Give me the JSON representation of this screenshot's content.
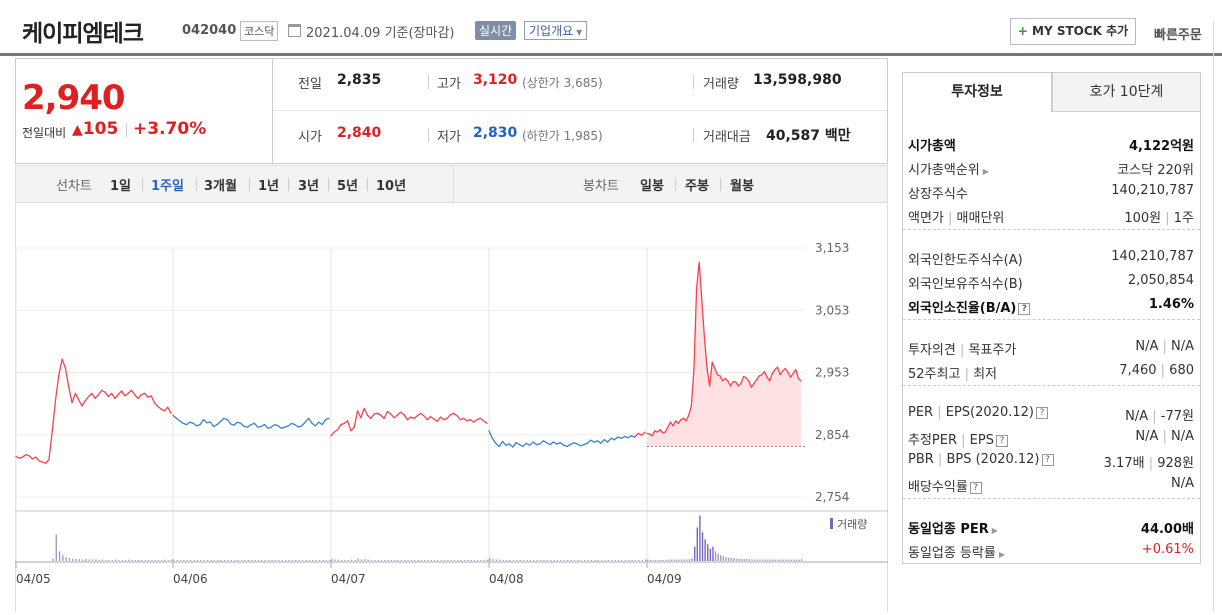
{
  "header": {
    "name": "케이피엠테크",
    "code": "042040",
    "market": "코스닥",
    "date_text": "2021.04.09 기준(장마감)",
    "realtime_label": "실시간",
    "overview_label": "기업개요",
    "mystock_label": "MY STOCK 추가",
    "quick_order_label": "빠른주문"
  },
  "price": {
    "current": "2,940",
    "change_label": "전일대비",
    "change_amount": "105",
    "change_percent": "+3.70%"
  },
  "stats": {
    "prev_label": "전일",
    "prev_value": "2,835",
    "high_label": "고가",
    "high_value": "3,120",
    "upper_limit": "(상한가 3,685)",
    "volume_label": "거래량",
    "volume_value": "13,598,980",
    "open_label": "시가",
    "open_value": "2,840",
    "low_label": "저가",
    "low_value": "2,830",
    "lower_limit": "(하한가 1,985)",
    "amount_label": "거래대금",
    "amount_value": "40,587",
    "amount_unit": "백만"
  },
  "chart_tabs": {
    "line_label": "선차트",
    "periods": [
      "1일",
      "1주일",
      "3개월",
      "1년",
      "3년",
      "5년",
      "10년"
    ],
    "selected": "1주일",
    "candle_label": "봉차트",
    "candles": [
      "일봉",
      "주봉",
      "월봉"
    ]
  },
  "chart_data": {
    "type": "line",
    "y_ticks": [
      "3,153",
      "3,053",
      "2,953",
      "2,854",
      "2,754"
    ],
    "ylim": [
      2754,
      3153
    ],
    "x_labels": [
      "04/05",
      "04/06",
      "04/07",
      "04/08",
      "04/09"
    ],
    "prev_close": 2835,
    "volume_legend": "거래량",
    "series": [
      {
        "days": [
          [
            2819,
            2816,
            2818,
            2822,
            2820,
            2815,
            2818,
            2812,
            2810,
            2808,
            2814,
            2860,
            2910,
            2950,
            2975,
            2960,
            2930,
            2905,
            2920,
            2910,
            2900,
            2908,
            2915,
            2920,
            2912,
            2918,
            2925,
            2922,
            2915,
            2920,
            2912,
            2918,
            2924,
            2916,
            2920,
            2925,
            2918,
            2912,
            2918,
            2920,
            2914,
            2916,
            2905,
            2899,
            2895,
            2892,
            2898,
            2888
          ],
          [
            2885,
            2880,
            2876,
            2872,
            2870,
            2874,
            2872,
            2868,
            2870,
            2878,
            2873,
            2874,
            2867,
            2870,
            2875,
            2880,
            2878,
            2871,
            2869,
            2874,
            2872,
            2867,
            2866,
            2870,
            2872,
            2866,
            2867,
            2870,
            2864,
            2866,
            2870,
            2868,
            2864,
            2866,
            2868,
            2872,
            2870,
            2866,
            2868,
            2874,
            2880,
            2872,
            2868,
            2874,
            2870,
            2878,
            2880
          ],
          [
            2852,
            2858,
            2862,
            2870,
            2872,
            2876,
            2860,
            2866,
            2892,
            2881,
            2896,
            2885,
            2880,
            2887,
            2888,
            2885,
            2880,
            2891,
            2887,
            2881,
            2885,
            2890,
            2886,
            2878,
            2882,
            2880,
            2884,
            2888,
            2884,
            2878,
            2883,
            2879,
            2875,
            2882,
            2878,
            2880,
            2886,
            2888,
            2884,
            2878,
            2880,
            2876,
            2878,
            2874,
            2878,
            2880,
            2876,
            2872
          ],
          [
            2860,
            2848,
            2840,
            2835,
            2843,
            2837,
            2839,
            2834,
            2841,
            2838,
            2835,
            2840,
            2837,
            2842,
            2838,
            2839,
            2844,
            2841,
            2838,
            2842,
            2839,
            2841,
            2837,
            2835,
            2838,
            2841,
            2839,
            2836,
            2838,
            2840,
            2845,
            2842,
            2844,
            2840,
            2846,
            2842,
            2848,
            2846,
            2850,
            2848,
            2851,
            2849,
            2852,
            2850,
            2856,
            2853,
            2858
          ],
          [
            2856,
            2855,
            2852,
            2860,
            2858,
            2862,
            2857,
            2858,
            2866,
            2874,
            2868,
            2876,
            2872,
            2878,
            2880,
            2876,
            2885,
            2900,
            2960,
            3088,
            3130,
            3070,
            3010,
            2960,
            2932,
            2970,
            2960,
            2950,
            2948,
            2940,
            2944,
            2940,
            2932,
            2939,
            2938,
            2932,
            2936,
            2947,
            2945,
            2940,
            2930,
            2936,
            2942,
            2948,
            2950,
            2955,
            2946,
            2940,
            2952,
            2958,
            2962,
            2950,
            2956,
            2960,
            2954,
            2946,
            2952,
            2958,
            2944,
            2940
          ]
        ]
      }
    ],
    "volume": [
      [
        0,
        0,
        0,
        0,
        0,
        0,
        0,
        0,
        0,
        0,
        0,
        0.05,
        0.55,
        0.2,
        0.12,
        0.08,
        0.06,
        0.05,
        0.04,
        0.04,
        0.03,
        0.04,
        0.03,
        0.03,
        0.03,
        0.02,
        0.03,
        0.02,
        0.02,
        0.02,
        0.03,
        0.02,
        0.02,
        0.02,
        0.03,
        0.02,
        0.02,
        0.02,
        0.02,
        0.02,
        0.02,
        0.02,
        0.02,
        0.02,
        0.02,
        0.03,
        0.02,
        0.03
      ],
      [
        0.03,
        0.02,
        0.02,
        0.02,
        0.02,
        0.02,
        0.02,
        0.02,
        0.02,
        0.02,
        0.02,
        0.02,
        0.02,
        0.02,
        0.02,
        0.02,
        0.02,
        0.02,
        0.02,
        0.02,
        0.02,
        0.02,
        0.02,
        0.02,
        0.02,
        0.02,
        0.02,
        0.02,
        0.02,
        0.02,
        0.02,
        0.02,
        0.02,
        0.02,
        0.02,
        0.02,
        0.02,
        0.02,
        0.02,
        0.02,
        0.02,
        0.02,
        0.02,
        0.02,
        0.02,
        0.02,
        0.02
      ],
      [
        0.04,
        0.03,
        0.03,
        0.02,
        0.02,
        0.02,
        0.03,
        0.02,
        0.05,
        0.03,
        0.04,
        0.03,
        0.02,
        0.02,
        0.02,
        0.02,
        0.02,
        0.02,
        0.02,
        0.02,
        0.02,
        0.02,
        0.02,
        0.02,
        0.02,
        0.02,
        0.02,
        0.02,
        0.02,
        0.02,
        0.02,
        0.02,
        0.02,
        0.02,
        0.02,
        0.02,
        0.02,
        0.02,
        0.02,
        0.02,
        0.02,
        0.02,
        0.02,
        0.02,
        0.02,
        0.02,
        0.02,
        0.03
      ],
      [
        0.06,
        0.04,
        0.03,
        0.03,
        0.02,
        0.02,
        0.02,
        0.02,
        0.02,
        0.02,
        0.02,
        0.02,
        0.02,
        0.02,
        0.02,
        0.02,
        0.02,
        0.02,
        0.02,
        0.02,
        0.02,
        0.02,
        0.02,
        0.02,
        0.02,
        0.02,
        0.02,
        0.02,
        0.02,
        0.02,
        0.02,
        0.02,
        0.02,
        0.02,
        0.02,
        0.02,
        0.02,
        0.02,
        0.02,
        0.02,
        0.02,
        0.02,
        0.02,
        0.02,
        0.02,
        0.02,
        0.03
      ],
      [
        0.03,
        0.02,
        0.02,
        0.02,
        0.02,
        0.02,
        0.02,
        0.02,
        0.03,
        0.03,
        0.03,
        0.03,
        0.03,
        0.03,
        0.03,
        0.03,
        0.04,
        0.06,
        0.3,
        0.7,
        0.95,
        0.6,
        0.45,
        0.35,
        0.25,
        0.3,
        0.2,
        0.15,
        0.12,
        0.1,
        0.08,
        0.07,
        0.06,
        0.06,
        0.05,
        0.05,
        0.04,
        0.04,
        0.04,
        0.04,
        0.03,
        0.03,
        0.03,
        0.03,
        0.03,
        0.03,
        0.03,
        0.03,
        0.03,
        0.03,
        0.03,
        0.03,
        0.03,
        0.03,
        0.03,
        0.03,
        0.03,
        0.03,
        0.03,
        0.04
      ]
    ],
    "colors": {
      "up": "#f2434f",
      "down": "#3b82d4",
      "fill": "#fde1e3",
      "volume": "#9aa0c0"
    }
  },
  "investment": {
    "tab_active": "투자정보",
    "tab_other": "호가 10단계",
    "rows": [
      {
        "label": "시가총액",
        "value": "4,122억원",
        "bold": true
      },
      {
        "label": "시가총액순위",
        "value": "코스닥 220위",
        "arrow": true
      },
      {
        "label": "상장주식수",
        "value": "140,210,787"
      },
      {
        "label": "액면가",
        "label2": "매매단위",
        "value": "100원",
        "value2": "1주"
      },
      {
        "label": "외국인한도주식수(A)",
        "value": "140,210,787"
      },
      {
        "label": "외국인보유주식수(B)",
        "value": "2,050,854"
      },
      {
        "label": "외국인소진율(B/A)",
        "value": "1.46%",
        "bold": true,
        "help": true
      },
      {
        "label": "투자의견",
        "label2": "목표주가",
        "value": "N/A",
        "value2": "N/A"
      },
      {
        "label": "52주최고",
        "label2": "최저",
        "value": "7,460",
        "value2": "680"
      },
      {
        "label": "PER",
        "label2": "EPS(2020.12)",
        "value": "N/A",
        "value2": "-77원",
        "help": true
      },
      {
        "label": "추정PER",
        "label2": "EPS",
        "value": "N/A",
        "value2": "N/A",
        "help": true
      },
      {
        "label": "PBR",
        "label2": "BPS (2020.12)",
        "value": "3.17배",
        "value2": "928원",
        "help": true
      },
      {
        "label": "배당수익률",
        "value": "N/A",
        "help": true
      },
      {
        "label": "동일업종 PER",
        "value": "44.00배",
        "bold": true,
        "arrow": true
      },
      {
        "label": "동일업종 등락률",
        "value": "+0.61%",
        "arrow": true,
        "red": true
      }
    ]
  }
}
